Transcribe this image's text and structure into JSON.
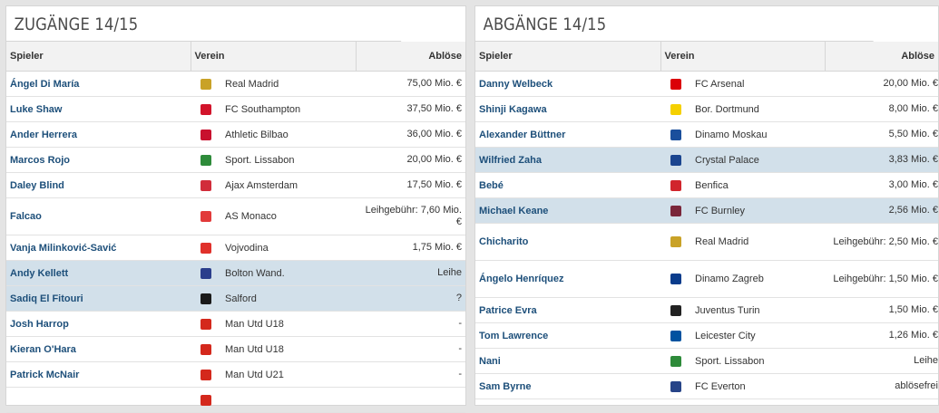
{
  "left": {
    "title": "ZUGÄNGE 14/15",
    "headers": {
      "player": "Spieler",
      "club": "Verein",
      "fee": "Ablöse"
    },
    "rows": [
      {
        "player": "Ángel Di María",
        "club": "Real Madrid",
        "fee": "75,00 Mio. €",
        "icon": "real-madrid-crest-icon",
        "color": "#c9a227"
      },
      {
        "player": "Luke Shaw",
        "club": "FC Southampton",
        "fee": "37,50 Mio. €",
        "icon": "southampton-crest-icon",
        "color": "#d2142b"
      },
      {
        "player": "Ander Herrera",
        "club": "Athletic Bilbao",
        "fee": "36,00 Mio. €",
        "icon": "athletic-bilbao-crest-icon",
        "color": "#c8102e"
      },
      {
        "player": "Marcos Rojo",
        "club": "Sport. Lissabon",
        "fee": "20,00 Mio. €",
        "icon": "sporting-crest-icon",
        "color": "#2e8b3a"
      },
      {
        "player": "Daley Blind",
        "club": "Ajax Amsterdam",
        "fee": "17,50 Mio. €",
        "icon": "ajax-crest-icon",
        "color": "#d12c3a"
      },
      {
        "player": "Falcao",
        "club": "AS Monaco",
        "fee": "Leihgebühr: 7,60 Mio. €",
        "icon": "monaco-crest-icon",
        "color": "#e23a3a",
        "tall": true
      },
      {
        "player": "Vanja Milinković-Savić",
        "club": "Vojvodina",
        "fee": "1,75 Mio. €",
        "icon": "vojvodina-crest-icon",
        "color": "#e0312b"
      },
      {
        "player": "Andy Kellett",
        "club": "Bolton Wand.",
        "fee": "Leihe",
        "icon": "bolton-crest-icon",
        "color": "#2a3e8c",
        "highlight": true
      },
      {
        "player": "Sadiq El Fitouri",
        "club": "Salford",
        "fee": "?",
        "icon": "salford-crest-icon",
        "color": "#1a1a1a",
        "highlight": true
      },
      {
        "player": "Josh Harrop",
        "club": "Man Utd U18",
        "fee": "-",
        "icon": "man-utd-crest-icon",
        "color": "#d4281c"
      },
      {
        "player": "Kieran O'Hara",
        "club": "Man Utd U18",
        "fee": "-",
        "icon": "man-utd-crest-icon",
        "color": "#d4281c"
      },
      {
        "player": "Patrick McNair",
        "club": "Man Utd U21",
        "fee": "-",
        "icon": "man-utd-crest-icon",
        "color": "#d4281c"
      },
      {
        "player": "",
        "club": "",
        "fee": "",
        "icon": "man-utd-crest-icon",
        "color": "#d4281c"
      }
    ]
  },
  "right": {
    "title": "ABGÄNGE 14/15",
    "headers": {
      "player": "Spieler",
      "club": "Verein",
      "fee": "Ablöse"
    },
    "rows": [
      {
        "player": "Danny Welbeck",
        "club": "FC Arsenal",
        "fee": "20,00 Mio. €",
        "icon": "arsenal-crest-icon",
        "color": "#db0007"
      },
      {
        "player": "Shinji Kagawa",
        "club": "Bor. Dortmund",
        "fee": "8,00 Mio. €",
        "icon": "dortmund-crest-icon",
        "color": "#f5d000"
      },
      {
        "player": "Alexander Büttner",
        "club": "Dinamo Moskau",
        "fee": "5,50 Mio. €",
        "icon": "dinamo-moskau-crest-icon",
        "color": "#1a4f9c"
      },
      {
        "player": "Wilfried Zaha",
        "club": "Crystal Palace",
        "fee": "3,83 Mio. €",
        "icon": "crystal-palace-crest-icon",
        "color": "#1b458f",
        "highlight": true
      },
      {
        "player": "Bebé",
        "club": "Benfica",
        "fee": "3,00 Mio. €",
        "icon": "benfica-crest-icon",
        "color": "#d1252c"
      },
      {
        "player": "Michael Keane",
        "club": "FC Burnley",
        "fee": "2,56 Mio. €",
        "icon": "burnley-crest-icon",
        "color": "#7a263a",
        "highlight": true
      },
      {
        "player": "Chicharito",
        "club": "Real Madrid",
        "fee": "Leihgebühr: 2,50 Mio. €",
        "icon": "real-madrid-crest-icon",
        "color": "#c9a227",
        "tall": true
      },
      {
        "player": "Ángelo Henríquez",
        "club": "Dinamo Zagreb",
        "fee": "Leihgebühr: 1,50 Mio. €",
        "icon": "dinamo-zagreb-crest-icon",
        "color": "#0a3c8c",
        "tall": true
      },
      {
        "player": "Patrice Evra",
        "club": "Juventus Turin",
        "fee": "1,50 Mio. €",
        "icon": "juventus-crest-icon",
        "color": "#222222"
      },
      {
        "player": "Tom Lawrence",
        "club": "Leicester City",
        "fee": "1,26 Mio. €",
        "icon": "leicester-crest-icon",
        "color": "#0053a0"
      },
      {
        "player": "Nani",
        "club": "Sport. Lissabon",
        "fee": "Leihe",
        "icon": "sporting-crest-icon",
        "color": "#2e8b3a"
      },
      {
        "player": "Sam Byrne",
        "club": "FC Everton",
        "fee": "ablösefrei",
        "icon": "everton-crest-icon",
        "color": "#274488"
      }
    ]
  }
}
